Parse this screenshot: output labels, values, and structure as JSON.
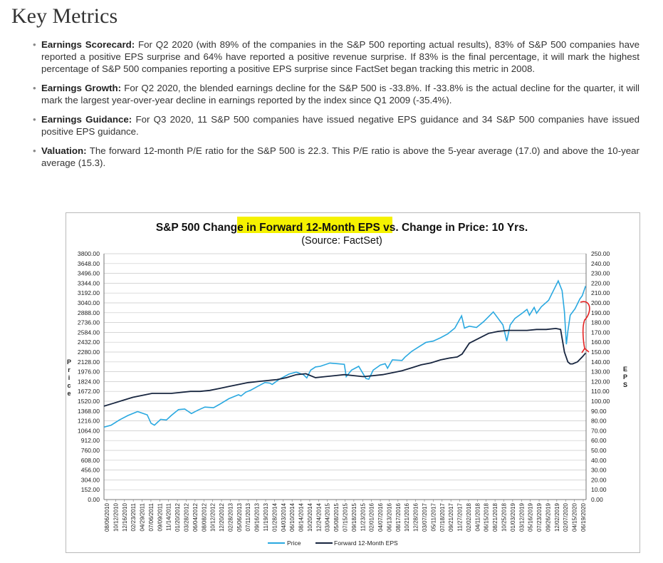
{
  "page": {
    "heading": "Key Metrics",
    "bullets": [
      {
        "label": "Earnings Scorecard:",
        "text": " For Q2 2020 (with 89% of the companies in the S&P 500 reporting actual results), 83% of S&P 500 companies have reported a positive EPS surprise and 64% have reported a positive revenue surprise. If 83% is the final percentage, it will mark the highest percentage of S&P 500 companies reporting a positive EPS surprise since FactSet began tracking this metric in 2008."
      },
      {
        "label": "Earnings Growth:",
        "text": " For Q2 2020, the blended earnings decline for the S&P 500 is -33.8%. If -33.8% is the actual decline for the quarter, it will mark the largest year-over-year decline in earnings reported by the index since Q1 2009 (-35.4%)."
      },
      {
        "label": "Earnings Guidance:",
        "text": " For Q3 2020, 11 S&P 500 companies have issued negative EPS guidance and 34 S&P 500 companies have issued positive EPS guidance."
      },
      {
        "label": "Valuation:",
        "text": " The forward 12-month P/E ratio for the S&P 500 is 22.3. This P/E ratio is above the 5-year average (17.0) and above the 10-year average (15.3)."
      }
    ]
  },
  "chart_data": {
    "type": "line",
    "title_before": "S&P 500 Change in ",
    "title_highlight": "Forward 12-Month EPS",
    "title_after": " vs. Change in Price: 10 Yrs.",
    "subtitle": "(Source: FactSet)",
    "ylabel_left": "Price",
    "ylabel_right": "EPS",
    "ylim_left": [
      0,
      3800
    ],
    "ylim_right": [
      0,
      250
    ],
    "yticks_left": [
      "3800.00",
      "3648.00",
      "3496.00",
      "3344.00",
      "3192.00",
      "3040.00",
      "2888.00",
      "2736.00",
      "2584.00",
      "2432.00",
      "2280.00",
      "2128.00",
      "1976.00",
      "1824.00",
      "1672.00",
      "1520.00",
      "1368.00",
      "1216.00",
      "1064.00",
      "912.00",
      "760.00",
      "608.00",
      "456.00",
      "304.00",
      "152.00",
      "0.00"
    ],
    "yticks_right": [
      "250.00",
      "240.00",
      "230.00",
      "220.00",
      "210.00",
      "200.00",
      "190.00",
      "180.00",
      "170.00",
      "160.00",
      "150.00",
      "140.00",
      "130.00",
      "120.00",
      "110.00",
      "100.00",
      "90.00",
      "80.00",
      "70.00",
      "60.00",
      "50.00",
      "40.00",
      "30.00",
      "20.00",
      "10.00",
      "0.00"
    ],
    "xticks": [
      "08/06/2010",
      "10/12/2010",
      "12/16/2010",
      "02/23/2011",
      "04/29/2011",
      "07/06/2011",
      "09/09/2011",
      "11/14/2011",
      "01/20/2012",
      "03/28/2012",
      "06/04/2012",
      "08/08/2012",
      "10/12/2012",
      "12/20/2012",
      "02/28/2013",
      "05/06/2013",
      "07/11/2013",
      "09/16/2013",
      "11/19/2013",
      "01/28/2014",
      "04/03/2014",
      "06/10/2014",
      "08/14/2014",
      "10/20/2014",
      "12/24/2014",
      "03/04/2015",
      "05/08/2015",
      "07/15/2015",
      "09/18/2015",
      "11/23/2015",
      "02/01/2016",
      "04/07/2016",
      "06/13/2016",
      "08/17/2016",
      "10/21/2016",
      "12/28/2016",
      "03/07/2017",
      "05/11/2017",
      "07/18/2017",
      "09/21/2017",
      "11/27/2017",
      "02/02/2018",
      "04/11/2018",
      "06/15/2018",
      "08/21/2018",
      "10/25/2018",
      "01/03/2019",
      "03/12/2019",
      "05/16/2019",
      "07/23/2019",
      "09/26/2019",
      "12/02/2019",
      "02/07/2020",
      "04/15/2020",
      "06/19/2020"
    ],
    "series": [
      {
        "name": "Price",
        "axis": "left",
        "color": "#29a8e0",
        "x": [
          2010.6,
          2010.75,
          2010.92,
          2011.1,
          2011.3,
          2011.5,
          2011.58,
          2011.65,
          2011.78,
          2011.9,
          2012.0,
          2012.15,
          2012.28,
          2012.42,
          2012.55,
          2012.7,
          2012.88,
          2013.0,
          2013.2,
          2013.4,
          2013.45,
          2013.55,
          2013.65,
          2013.8,
          2013.95,
          2014.05,
          2014.1,
          2014.25,
          2014.45,
          2014.6,
          2014.75,
          2014.82,
          2014.9,
          2015.0,
          2015.1,
          2015.3,
          2015.45,
          2015.6,
          2015.64,
          2015.75,
          2015.9,
          2016.05,
          2016.11,
          2016.2,
          2016.35,
          2016.45,
          2016.5,
          2016.6,
          2016.8,
          2016.86,
          2017.0,
          2017.15,
          2017.3,
          2017.45,
          2017.6,
          2017.75,
          2017.9,
          2018.04,
          2018.1,
          2018.2,
          2018.35,
          2018.5,
          2018.7,
          2018.8,
          2018.9,
          2018.98,
          2019.05,
          2019.15,
          2019.3,
          2019.4,
          2019.45,
          2019.55,
          2019.6,
          2019.7,
          2019.85,
          2019.95,
          2020.05,
          2020.13,
          2020.18,
          2020.22,
          2020.25,
          2020.3,
          2020.4,
          2020.5,
          2020.55,
          2020.62
        ],
        "y": [
          1120,
          1150,
          1230,
          1300,
          1360,
          1310,
          1180,
          1150,
          1240,
          1230,
          1300,
          1390,
          1400,
          1330,
          1380,
          1430,
          1420,
          1470,
          1560,
          1620,
          1600,
          1660,
          1690,
          1750,
          1810,
          1800,
          1780,
          1860,
          1940,
          1970,
          1930,
          1880,
          2000,
          2050,
          2060,
          2110,
          2100,
          2090,
          1900,
          2000,
          2060,
          1870,
          1860,
          2000,
          2080,
          2100,
          2030,
          2160,
          2150,
          2200,
          2290,
          2360,
          2430,
          2450,
          2500,
          2560,
          2650,
          2840,
          2650,
          2680,
          2660,
          2750,
          2900,
          2800,
          2700,
          2450,
          2700,
          2800,
          2880,
          2940,
          2850,
          2970,
          2880,
          2980,
          3080,
          3230,
          3380,
          3230,
          2900,
          2400,
          2600,
          2850,
          2950,
          3100,
          3150,
          3300
        ]
      },
      {
        "name": "Forward 12-Month EPS",
        "axis": "right",
        "color": "#17253f",
        "x": [
          2010.6,
          2010.8,
          2011.0,
          2011.2,
          2011.4,
          2011.6,
          2011.8,
          2012.0,
          2012.2,
          2012.4,
          2012.6,
          2012.8,
          2013.0,
          2013.2,
          2013.4,
          2013.6,
          2013.8,
          2014.0,
          2014.2,
          2014.4,
          2014.6,
          2014.8,
          2015.0,
          2015.2,
          2015.4,
          2015.6,
          2015.8,
          2016.0,
          2016.2,
          2016.4,
          2016.6,
          2016.8,
          2017.0,
          2017.2,
          2017.4,
          2017.6,
          2017.8,
          2017.95,
          2018.05,
          2018.2,
          2018.4,
          2018.6,
          2018.8,
          2019.0,
          2019.2,
          2019.4,
          2019.6,
          2019.8,
          2020.0,
          2020.1,
          2020.18,
          2020.25,
          2020.3,
          2020.35,
          2020.45,
          2020.55,
          2020.62
        ],
        "y": [
          95,
          98,
          101,
          104,
          106,
          108,
          108,
          108,
          109,
          110,
          110,
          111,
          113,
          115,
          117,
          119,
          120,
          121,
          122,
          124,
          127,
          128,
          124,
          125,
          126,
          127,
          126,
          125,
          126,
          127,
          129,
          131,
          134,
          137,
          139,
          142,
          144,
          145,
          148,
          159,
          164,
          169,
          171,
          172,
          172,
          172,
          173,
          173,
          174,
          173,
          150,
          140,
          138,
          138,
          140,
          145,
          149
        ]
      }
    ],
    "legend": [
      "Price",
      "Forward 12-Month EPS"
    ],
    "legend_position": "bottom",
    "grid": true
  }
}
